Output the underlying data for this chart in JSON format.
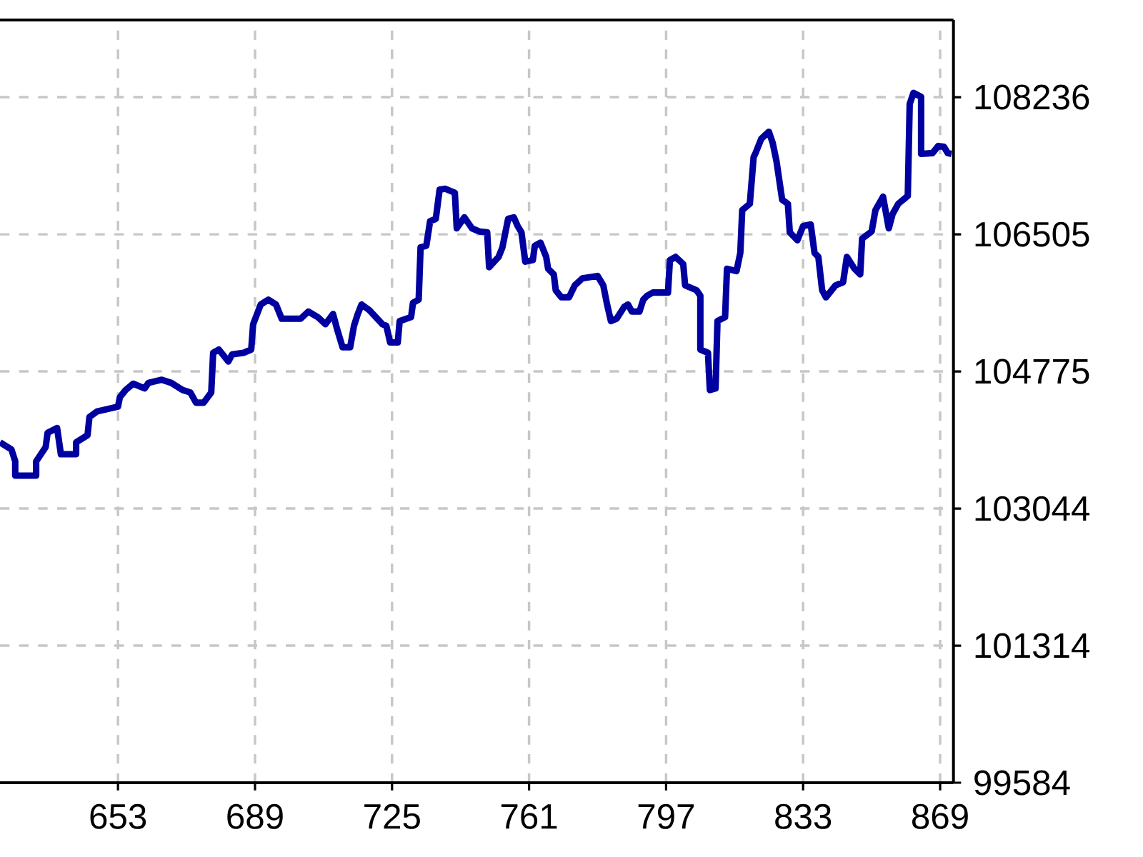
{
  "chart_data": {
    "type": "line",
    "color": "#0000a0",
    "line_style": "solid",
    "grid": true,
    "xlim": [
      622,
      872.5
    ],
    "ylim": [
      99584,
      109210
    ],
    "xticks": [
      653,
      689,
      725,
      761,
      797,
      833,
      869
    ],
    "yticks": [
      99584,
      101314,
      103044,
      104775,
      106505,
      108236
    ],
    "x": [
      622,
      625,
      626,
      626,
      631.5,
      631.5,
      634,
      634.5,
      637,
      638,
      642,
      642,
      645,
      645.5,
      647.5,
      653,
      653.5,
      655,
      657,
      660,
      661,
      664.5,
      667,
      670,
      672,
      673.5,
      675.5,
      677.5,
      678,
      679.5,
      682,
      683,
      686,
      688,
      688.5,
      690.5,
      692.5,
      694.5,
      696,
      701,
      703,
      705.5,
      707.5,
      709.5,
      710.5,
      712,
      714,
      715,
      716,
      717,
      719,
      722.5,
      723.5,
      724.5,
      726.5,
      727,
      730,
      730.5,
      732,
      732.5,
      734,
      735,
      736.5,
      737.5,
      739,
      741.5,
      742,
      744,
      746,
      748,
      750,
      750.5,
      753,
      754,
      755.5,
      757,
      758,
      759,
      760,
      762,
      762.5,
      764,
      765.5,
      766,
      767.5,
      768,
      769.5,
      771.5,
      773,
      775,
      779,
      780.5,
      781.5,
      782.5,
      784,
      786,
      787,
      788,
      790,
      791,
      792,
      793.5,
      797.5,
      798,
      799.5,
      801.5,
      802,
      805,
      806,
      806,
      808,
      808.5,
      810,
      810.5,
      812.5,
      813,
      815.5,
      816.5,
      817,
      819,
      820,
      820.5,
      822,
      824,
      825,
      826,
      827.5,
      829,
      829.5,
      831.5,
      833,
      835,
      836,
      837,
      838,
      839,
      841.5,
      843.5,
      844.5,
      846.5,
      848,
      848.5,
      851,
      852,
      854,
      855.5,
      856.5,
      858,
      860.5,
      861,
      862,
      864,
      864,
      867,
      868.5,
      870,
      871,
      872
    ],
    "values": [
      103880,
      103790,
      103640,
      103460,
      103460,
      103640,
      103820,
      104000,
      104060,
      103730,
      103730,
      103880,
      103970,
      104200,
      104270,
      104330,
      104450,
      104540,
      104620,
      104560,
      104630,
      104670,
      104630,
      104540,
      104510,
      104380,
      104380,
      104510,
      105010,
      105050,
      104900,
      104990,
      105010,
      105050,
      105370,
      105620,
      105680,
      105620,
      105440,
      105440,
      105530,
      105460,
      105370,
      105500,
      105320,
      105080,
      105080,
      105350,
      105500,
      105620,
      105550,
      105370,
      105350,
      105140,
      105140,
      105410,
      105460,
      105640,
      105680,
      106340,
      106360,
      106670,
      106700,
      107070,
      107080,
      107030,
      106580,
      106720,
      106580,
      106540,
      106530,
      106090,
      106220,
      106340,
      106700,
      106720,
      106610,
      106530,
      106160,
      106180,
      106360,
      106400,
      106220,
      106070,
      106000,
      105800,
      105710,
      105710,
      105860,
      105950,
      105980,
      105860,
      105620,
      105410,
      105440,
      105590,
      105620,
      105530,
      105530,
      105680,
      105730,
      105770,
      105770,
      106180,
      106220,
      106130,
      105860,
      105800,
      105730,
      105050,
      105010,
      104540,
      104560,
      105410,
      105460,
      106070,
      106040,
      106270,
      106810,
      106890,
      107480,
      107530,
      107710,
      107800,
      107660,
      107430,
      106940,
      106890,
      106530,
      106430,
      106610,
      106630,
      106270,
      106220,
      105800,
      105710,
      105860,
      105900,
      106220,
      106070,
      106000,
      106450,
      106540,
      106810,
      106980,
      106580,
      106760,
      106890,
      106990,
      108150,
      108290,
      108240,
      107520,
      107530,
      107620,
      107610,
      107530,
      107520
    ]
  }
}
